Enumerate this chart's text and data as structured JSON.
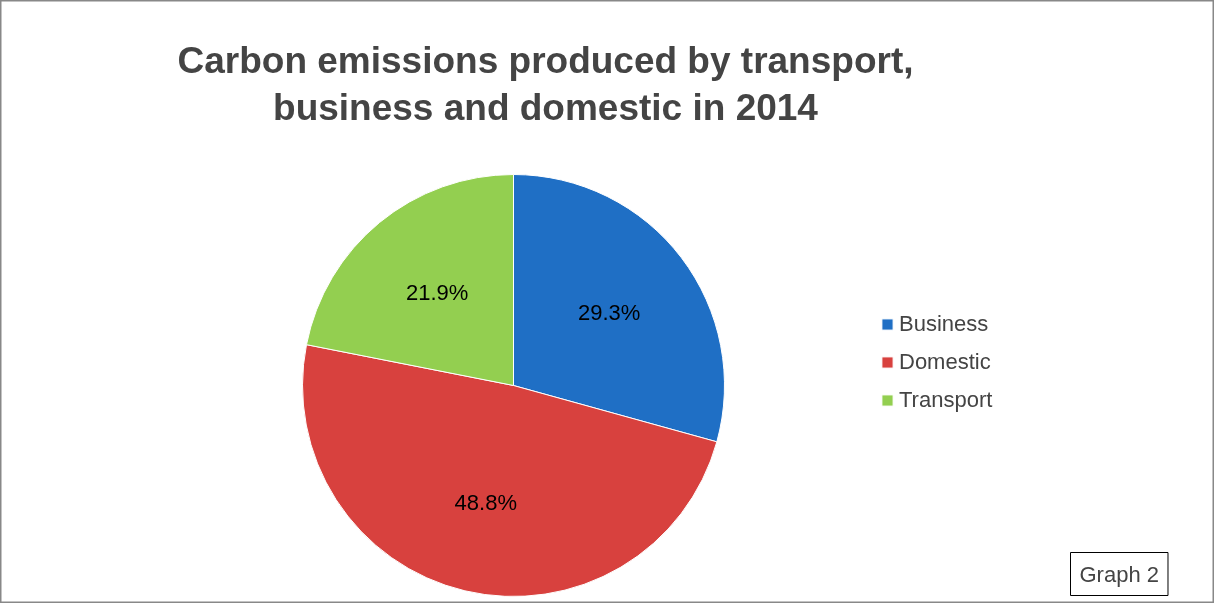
{
  "chart_data": {
    "type": "pie",
    "title": "Carbon emissions produced by transport,\nbusiness and domestic in 2014",
    "categories": [
      "Business",
      "Domestic",
      "Transport"
    ],
    "values": [
      29.3,
      48.8,
      21.9
    ],
    "colors": [
      "#1f6fc5",
      "#d8413e",
      "#93cf50"
    ],
    "value_labels": [
      "29.3%",
      "48.8%",
      "21.9%"
    ],
    "legend": "right",
    "annotations": [
      "Graph 2"
    ]
  }
}
